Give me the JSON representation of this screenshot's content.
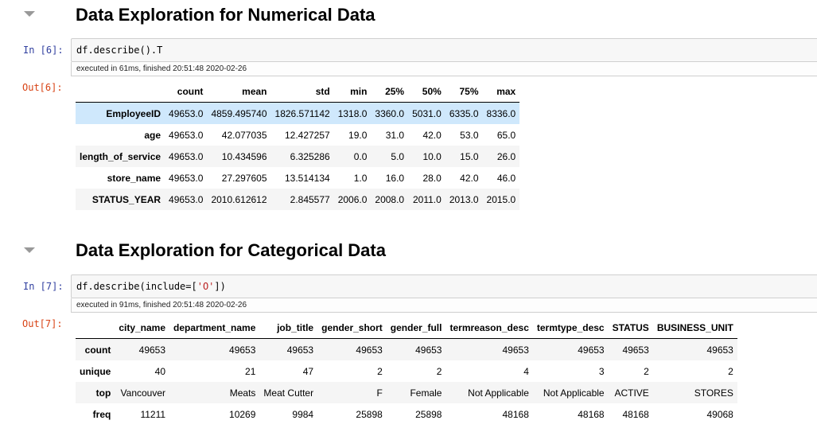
{
  "section1": {
    "heading": "Data Exploration for Numerical Data",
    "in_prompt": "In [6]:",
    "code": "df.describe().T",
    "exec_info": "executed in 61ms, finished 20:51:48 2020-02-26",
    "out_prompt": "Out[6]:",
    "table": {
      "columns": [
        "",
        "count",
        "mean",
        "std",
        "min",
        "25%",
        "50%",
        "75%",
        "max"
      ],
      "rows": [
        [
          "EmployeeID",
          "49653.0",
          "4859.495740",
          "1826.571142",
          "1318.0",
          "3360.0",
          "5031.0",
          "6335.0",
          "8336.0"
        ],
        [
          "age",
          "49653.0",
          "42.077035",
          "12.427257",
          "19.0",
          "31.0",
          "42.0",
          "53.0",
          "65.0"
        ],
        [
          "length_of_service",
          "49653.0",
          "10.434596",
          "6.325286",
          "0.0",
          "5.0",
          "10.0",
          "15.0",
          "26.0"
        ],
        [
          "store_name",
          "49653.0",
          "27.297605",
          "13.514134",
          "1.0",
          "16.0",
          "28.0",
          "42.0",
          "46.0"
        ],
        [
          "STATUS_YEAR",
          "49653.0",
          "2010.612612",
          "2.845577",
          "2006.0",
          "2008.0",
          "2011.0",
          "2013.0",
          "2015.0"
        ]
      ]
    }
  },
  "section2": {
    "heading": "Data Exploration for Categorical Data",
    "in_prompt": "In [7]:",
    "code_prefix": "df.describe(include=[",
    "code_string": "'O'",
    "code_suffix": "])",
    "exec_info": "executed in 91ms, finished 20:51:48 2020-02-26",
    "out_prompt": "Out[7]:",
    "table": {
      "columns": [
        "",
        "city_name",
        "department_name",
        "job_title",
        "gender_short",
        "gender_full",
        "termreason_desc",
        "termtype_desc",
        "STATUS",
        "BUSINESS_UNIT"
      ],
      "rows": [
        [
          "count",
          "49653",
          "49653",
          "49653",
          "49653",
          "49653",
          "49653",
          "49653",
          "49653",
          "49653"
        ],
        [
          "unique",
          "40",
          "21",
          "47",
          "2",
          "2",
          "4",
          "3",
          "2",
          "2"
        ],
        [
          "top",
          "Vancouver",
          "Meats",
          "Meat Cutter",
          "F",
          "Female",
          "Not Applicable",
          "Not Applicable",
          "ACTIVE",
          "STORES"
        ],
        [
          "freq",
          "11211",
          "10269",
          "9984",
          "25898",
          "25898",
          "48168",
          "48168",
          "48168",
          "49068"
        ]
      ]
    }
  },
  "colors": {
    "in_prompt": "#303f9f",
    "out_prompt": "#d84315",
    "highlight_row": "#cfe8fc",
    "string_literal": "#ba2121"
  },
  "icons": [
    "collapse-arrow-icon"
  ]
}
